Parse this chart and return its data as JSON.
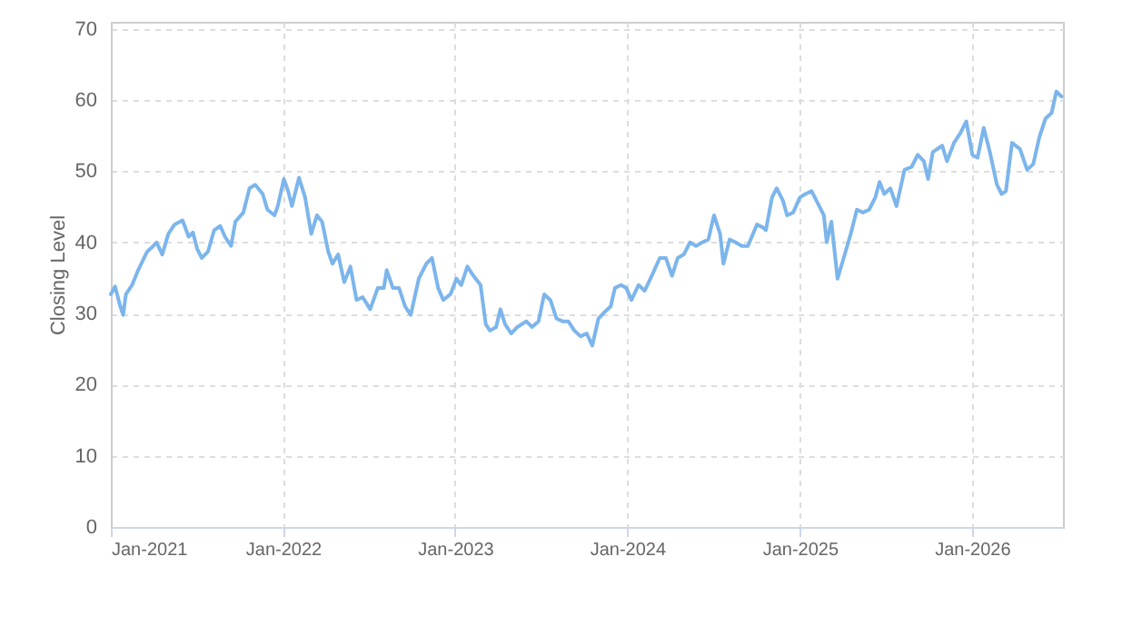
{
  "chart_data": {
    "type": "line",
    "ylabel": "Closing Level",
    "x": [
      "2021-01-01",
      "2021-01-10",
      "2021-01-21",
      "2021-01-27",
      "2021-02-02",
      "2021-02-15",
      "2021-02-28",
      "2021-03-19",
      "2021-04-01",
      "2021-04-08",
      "2021-04-20",
      "2021-05-03",
      "2021-05-16",
      "2021-06-02",
      "2021-06-15",
      "2021-06-24",
      "2021-07-03",
      "2021-07-13",
      "2021-07-26",
      "2021-08-08",
      "2021-08-21",
      "2021-08-31",
      "2021-09-13",
      "2021-09-22",
      "2021-10-09",
      "2021-10-22",
      "2021-11-03",
      "2021-11-19",
      "2021-11-29",
      "2021-12-14",
      "2021-12-21",
      "2022-01-03",
      "2022-01-12",
      "2022-01-20",
      "2022-02-04",
      "2022-02-17",
      "2022-03-02",
      "2022-03-14",
      "2022-03-25",
      "2022-04-07",
      "2022-04-16",
      "2022-04-28",
      "2022-05-11",
      "2022-05-24",
      "2022-06-06",
      "2022-06-19",
      "2022-07-05",
      "2022-07-21",
      "2022-08-03",
      "2022-08-09",
      "2022-08-22",
      "2022-09-04",
      "2022-09-17",
      "2022-09-29",
      "2022-10-16",
      "2022-11-01",
      "2022-11-13",
      "2022-11-26",
      "2022-12-07",
      "2022-12-22",
      "2023-01-04",
      "2023-01-14",
      "2023-01-27",
      "2023-02-09",
      "2023-02-24",
      "2023-03-07",
      "2023-03-16",
      "2023-03-29",
      "2023-04-07",
      "2023-04-17",
      "2023-04-30",
      "2023-05-13",
      "2023-06-01",
      "2023-06-13",
      "2023-06-27",
      "2023-07-09",
      "2023-07-22",
      "2023-08-04",
      "2023-08-17",
      "2023-08-29",
      "2023-09-11",
      "2023-09-24",
      "2023-10-07",
      "2023-10-19",
      "2023-11-01",
      "2023-11-14",
      "2023-11-27",
      "2023-12-06",
      "2023-12-19",
      "2023-12-30",
      "2024-01-10",
      "2024-01-25",
      "2024-02-07",
      "2024-02-22",
      "2024-03-10",
      "2024-03-23",
      "2024-04-05",
      "2024-04-17",
      "2024-04-30",
      "2024-05-13",
      "2024-05-26",
      "2024-06-08",
      "2024-06-21",
      "2024-07-03",
      "2024-07-16",
      "2024-07-23",
      "2024-08-05",
      "2024-08-18",
      "2024-08-31",
      "2024-09-13",
      "2024-10-02",
      "2024-10-15",
      "2024-10-21",
      "2024-11-03",
      "2024-11-13",
      "2024-11-26",
      "2024-12-05",
      "2024-12-18",
      "2025-01-01",
      "2025-01-13",
      "2025-01-26",
      "2025-02-08",
      "2025-02-21",
      "2025-02-27",
      "2025-03-09",
      "2025-03-22",
      "2025-04-04",
      "2025-04-19",
      "2025-05-02",
      "2025-05-15",
      "2025-05-28",
      "2025-06-10",
      "2025-06-19",
      "2025-06-29",
      "2025-07-12",
      "2025-07-25",
      "2025-08-11",
      "2025-08-26",
      "2025-09-08",
      "2025-09-21",
      "2025-09-30",
      "2025-10-10",
      "2025-10-30",
      "2025-11-09",
      "2025-11-24",
      "2025-12-07",
      "2025-12-20",
      "2026-01-02",
      "2026-01-13",
      "2026-01-26",
      "2026-02-08",
      "2026-02-23",
      "2026-03-05",
      "2026-03-14",
      "2026-03-27",
      "2026-04-13",
      "2026-04-28",
      "2026-05-11",
      "2026-05-24",
      "2026-06-06",
      "2026-06-19",
      "2026-06-29",
      "2026-07-10"
    ],
    "series": [
      {
        "color": "#7cb5ec",
        "values": [
          32.7,
          33.8,
          31.0,
          29.8,
          32.7,
          34.0,
          36.1,
          38.7,
          39.5,
          40.0,
          38.3,
          41.2,
          42.5,
          43.1,
          40.8,
          41.4,
          39.1,
          37.8,
          38.7,
          41.7,
          42.3,
          40.8,
          39.5,
          42.9,
          44.2,
          47.6,
          48.1,
          46.8,
          44.6,
          43.8,
          45.1,
          48.9,
          47.2,
          45.1,
          49.1,
          46.3,
          41.2,
          43.8,
          42.9,
          38.7,
          37.0,
          38.3,
          34.4,
          36.6,
          31.9,
          32.3,
          30.6,
          33.6,
          33.6,
          36.1,
          33.6,
          33.6,
          31.0,
          29.8,
          34.9,
          37.0,
          37.8,
          33.6,
          31.9,
          32.7,
          34.9,
          34.0,
          36.6,
          35.3,
          34.0,
          28.5,
          27.6,
          28.1,
          30.6,
          28.5,
          27.2,
          28.1,
          28.9,
          28.1,
          28.9,
          32.7,
          31.9,
          29.3,
          28.9,
          28.9,
          27.6,
          26.8,
          27.2,
          25.5,
          29.3,
          30.2,
          31.0,
          33.6,
          34.0,
          33.6,
          31.9,
          34.0,
          33.2,
          35.3,
          37.8,
          37.8,
          35.3,
          37.8,
          38.3,
          40.0,
          39.5,
          40.0,
          40.4,
          43.8,
          41.2,
          37.0,
          40.4,
          40.0,
          39.5,
          39.5,
          42.5,
          42.1,
          41.7,
          46.3,
          47.6,
          45.9,
          43.8,
          44.2,
          46.3,
          46.8,
          47.2,
          45.5,
          43.8,
          40.0,
          42.9,
          34.9,
          37.8,
          41.2,
          44.6,
          44.2,
          44.6,
          46.3,
          48.5,
          46.8,
          47.6,
          45.1,
          50.2,
          50.6,
          52.3,
          51.4,
          48.9,
          52.7,
          53.6,
          51.4,
          54.0,
          55.3,
          57.0,
          52.3,
          51.9,
          56.1,
          52.7,
          48.1,
          46.8,
          47.2,
          54.0,
          53.1,
          50.2,
          51.0,
          54.8,
          57.4,
          58.2,
          61.2,
          60.5
        ]
      }
    ],
    "xlim": [
      "2021-01-01",
      "2026-07-13"
    ],
    "xticks": [
      {
        "value": "2021-01-01",
        "label": "Jan-2021"
      },
      {
        "value": "2022-01-01",
        "label": "Jan-2022"
      },
      {
        "value": "2023-01-01",
        "label": "Jan-2023"
      },
      {
        "value": "2024-01-01",
        "label": "Jan-2024"
      },
      {
        "value": "2025-01-01",
        "label": "Jan-2025"
      },
      {
        "value": "2026-01-01",
        "label": "Jan-2026"
      }
    ],
    "ylim": [
      0,
      71
    ],
    "yticks": [
      0,
      10,
      20,
      30,
      40,
      50,
      60,
      70
    ],
    "grid": true,
    "line_style": "solid"
  }
}
